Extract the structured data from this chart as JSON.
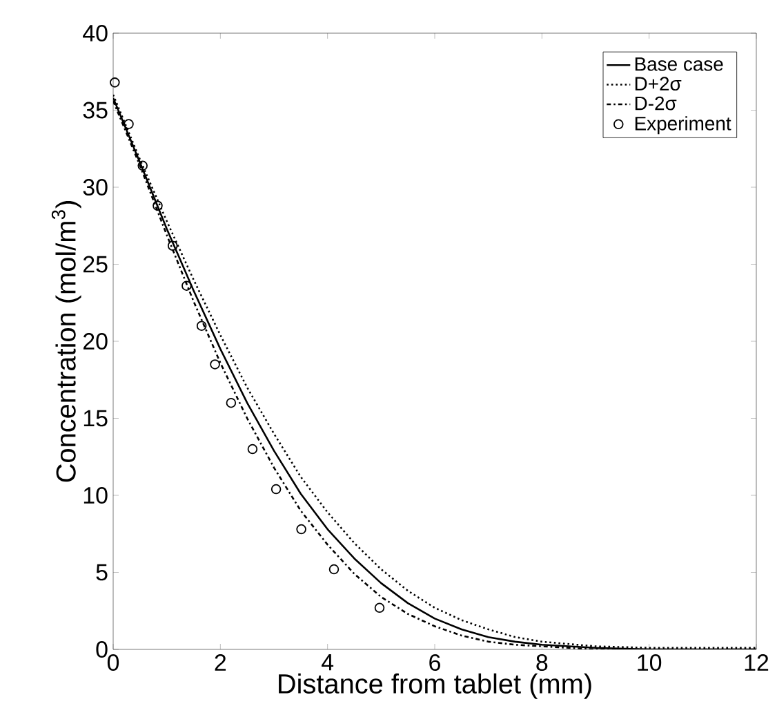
{
  "chart_data": {
    "type": "line",
    "xlabel": "Distance from tablet (mm)",
    "ylabel": "Concentration (mol/m$^{3}$)",
    "xlim": [
      0,
      12
    ],
    "ylim": [
      0,
      40
    ],
    "xticks": [
      0,
      2,
      4,
      6,
      8,
      10,
      12
    ],
    "yticks": [
      0,
      5,
      10,
      15,
      20,
      25,
      30,
      35,
      40
    ],
    "grid": false,
    "legend": "top right",
    "series": [
      {
        "name": "Base case",
        "color": "#000000",
        "line_style": "solid",
        "marker": "none",
        "x": [
          0,
          0.5,
          1,
          1.5,
          2,
          2.5,
          3,
          3.5,
          4,
          4.5,
          5,
          5.5,
          6,
          6.5,
          7,
          7.5,
          8,
          9,
          10,
          11,
          12
        ],
        "values": [
          35.8,
          31.6,
          27.3,
          23.3,
          19.5,
          16.0,
          12.9,
          10.1,
          7.8,
          5.9,
          4.3,
          3.0,
          2.0,
          1.3,
          0.8,
          0.5,
          0.3,
          0.1,
          0.0,
          0.0,
          0.0
        ]
      },
      {
        "name": "D+2σ",
        "color": "#000000",
        "line_style": "dotted",
        "marker": "none",
        "x": [
          0,
          0.5,
          1,
          1.5,
          2,
          2.5,
          3,
          3.5,
          4,
          4.5,
          5,
          5.5,
          6,
          6.5,
          7,
          7.5,
          8,
          9,
          10,
          11,
          12
        ],
        "values": [
          36.0,
          31.8,
          27.8,
          24.0,
          20.4,
          17.0,
          14.0,
          11.2,
          8.9,
          6.9,
          5.2,
          3.8,
          2.7,
          1.9,
          1.3,
          0.8,
          0.5,
          0.2,
          0.1,
          0.1,
          0.1
        ]
      },
      {
        "name": "D-2σ",
        "color": "#000000",
        "line_style": "dashdot",
        "marker": "none",
        "x": [
          0,
          0.5,
          1,
          1.5,
          2,
          2.5,
          3,
          3.5,
          4,
          4.5,
          5,
          5.5,
          6,
          6.5,
          7,
          7.5,
          8,
          9,
          10,
          11,
          12
        ],
        "values": [
          35.6,
          31.4,
          26.9,
          22.6,
          18.6,
          15.0,
          11.8,
          9.0,
          6.8,
          4.9,
          3.4,
          2.3,
          1.5,
          0.9,
          0.5,
          0.3,
          0.2,
          0.0,
          0.0,
          0.0,
          0.0
        ]
      },
      {
        "name": "Experiment",
        "type": "scatter",
        "color": "#000000",
        "marker": "circle",
        "x": [
          0.03,
          0.29,
          0.55,
          0.83,
          1.11,
          1.37,
          1.65,
          1.9,
          2.2,
          2.6,
          3.04,
          3.51,
          4.12,
          4.97
        ],
        "values": [
          36.8,
          34.1,
          31.4,
          28.8,
          26.2,
          23.6,
          21.0,
          18.5,
          16.0,
          13.0,
          10.4,
          7.8,
          5.2,
          2.7
        ]
      }
    ]
  }
}
